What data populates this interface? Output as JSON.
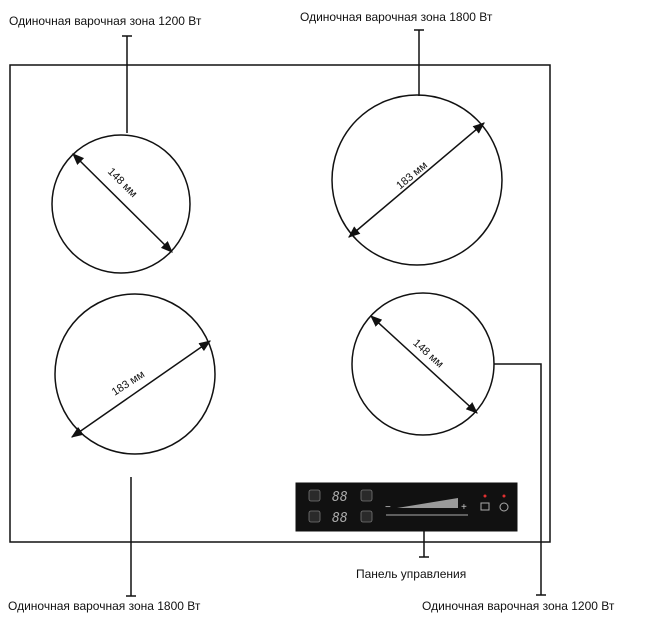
{
  "labels": {
    "zone_top_left": "Одиночная варочная зона 1200 Вт",
    "zone_top_right": "Одиночная варочная зона 1800 Вт",
    "zone_bottom_left": "Одиночная варочная зона 1800 Вт",
    "zone_bottom_right": "Одиночная варочная зона 1200 Вт",
    "control_panel": "Панель управления"
  },
  "dimensions": {
    "top_left": "148 мм",
    "top_right": "183 мм",
    "bottom_left": "183 мм",
    "bottom_right": "148 мм"
  },
  "control_panel": {
    "display_top": "88",
    "display_bottom": "88",
    "minus": "−",
    "plus": "+"
  },
  "colors": {
    "panel": "#111111",
    "indicator": "#e03030",
    "line": "#111111"
  }
}
